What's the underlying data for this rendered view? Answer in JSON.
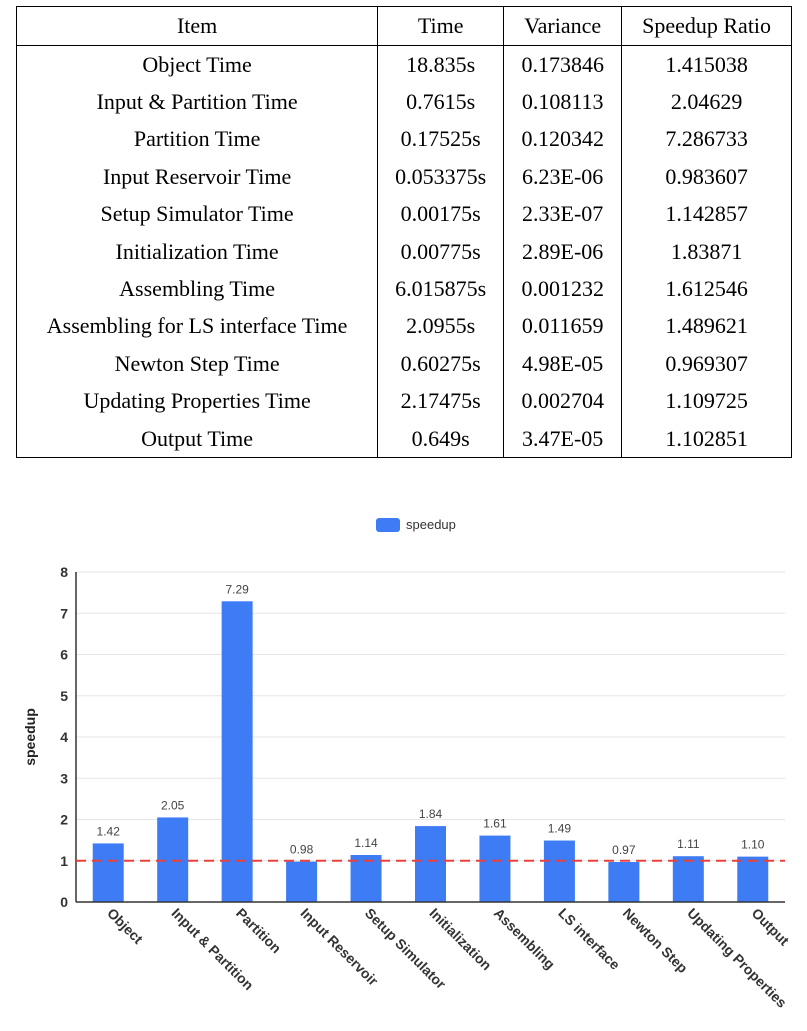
{
  "table": {
    "headers": [
      "Item",
      "Time",
      "Variance",
      "Speedup Ratio"
    ],
    "rows": [
      [
        "Object Time",
        "18.835s",
        "0.173846",
        "1.415038"
      ],
      [
        "Input & Partition Time",
        "0.7615s",
        "0.108113",
        "2.04629"
      ],
      [
        "Partition Time",
        "0.17525s",
        "0.120342",
        "7.286733"
      ],
      [
        "Input Reservoir Time",
        "0.053375s",
        "6.23E-06",
        "0.983607"
      ],
      [
        "Setup Simulator Time",
        "0.00175s",
        "2.33E-07",
        "1.142857"
      ],
      [
        "Initialization Time",
        "0.00775s",
        "2.89E-06",
        "1.83871"
      ],
      [
        "Assembling Time",
        "6.015875s",
        "0.001232",
        "1.612546"
      ],
      [
        "Assembling for LS interface Time",
        "2.0955s",
        "0.011659",
        "1.489621"
      ],
      [
        "Newton Step Time",
        "0.60275s",
        "4.98E-05",
        "0.969307"
      ],
      [
        "Updating Properties Time",
        "2.17475s",
        "0.002704",
        "1.109725"
      ],
      [
        "Output Time",
        "0.649s",
        "3.47E-05",
        "1.102851"
      ]
    ]
  },
  "chart_data": {
    "type": "bar",
    "categories": [
      "Object",
      "Input & Partition",
      "Partition",
      "Input Reservoir",
      "Setup Simulator",
      "Initialization",
      "Assembling",
      "LS interface",
      "Newton Step",
      "Updating Properties",
      "Output"
    ],
    "series": [
      {
        "name": "speedup",
        "values": [
          1.42,
          2.05,
          7.29,
          0.98,
          1.14,
          1.84,
          1.61,
          1.49,
          0.97,
          1.11,
          1.1
        ],
        "labels": [
          "1.42",
          "2.05",
          "7.29",
          "0.98",
          "1.14",
          "1.84",
          "1.61",
          "1.49",
          "0.97",
          "1.11",
          "1.10"
        ],
        "color": "#3d7cf5"
      }
    ],
    "title": "",
    "xlabel": "",
    "ylabel": "speedup",
    "ylim": [
      0,
      8
    ],
    "yticks": [
      "0",
      "1",
      "2",
      "3",
      "4",
      "5",
      "6",
      "7",
      "8"
    ],
    "reference_line": {
      "value": 1,
      "color": "#e8413c",
      "style": "dashed"
    },
    "legend": {
      "label": "speedup",
      "placement": "top-center"
    },
    "grid": true
  }
}
